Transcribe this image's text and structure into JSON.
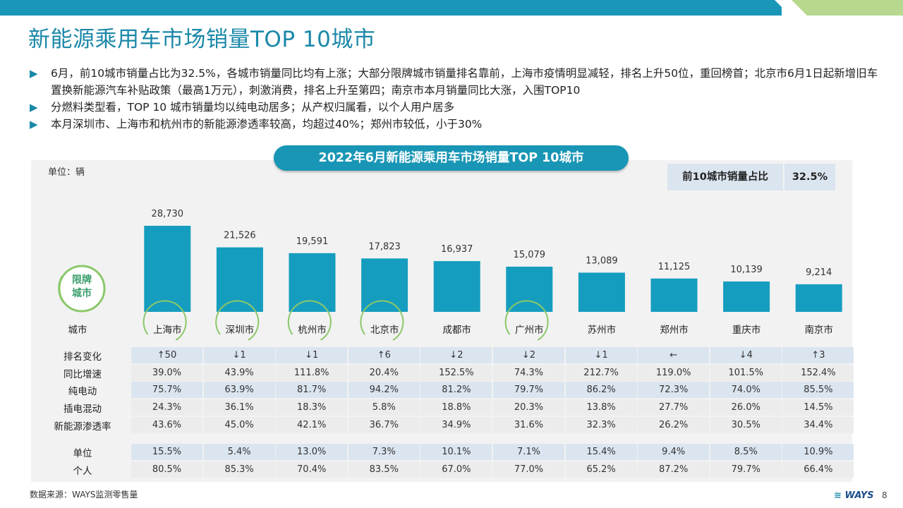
{
  "title": "新能源乘用车市场销量TOP 10城市",
  "bullets": [
    "6月，前10城市销量占比为32.5%，各城市销量同比均有上涨；大部分限牌城市销量排名靠前，上海市疫情明显减轻，排名上升50位，重回榜首；北京市6月1日起新增旧车置换新能源汽车补贴政策（最高1万元），刺激消费，排名上升至第四；南京市本月销量同比大涨，入围TOP10",
    "分燃料类型看，TOP 10 城市销量均以纯电动居多；从产权归属看，以个人用户居多",
    "本月深圳市、上海市和杭州市的新能源渗透率较高，均超过40%；郑州市较低，小于30%"
  ],
  "chart_title": "2022年6月新能源乘用车市场销量TOP 10城市",
  "unit_label": "单位：辆",
  "share": {
    "label": "前10城市销量占比",
    "value": "32.5%"
  },
  "badge": {
    "line1": "限牌",
    "line2": "城市"
  },
  "colors": {
    "bar": "#159dbf",
    "accent": "#1a88a8",
    "green_circle": "#8bc86a",
    "band": "#dbe5f0"
  },
  "chart_data": {
    "type": "bar",
    "x_label": "城市",
    "categories": [
      "上海市",
      "深圳市",
      "杭州市",
      "北京市",
      "成都市",
      "广州市",
      "苏州市",
      "郑州市",
      "重庆市",
      "南京市"
    ],
    "values": [
      28730,
      21526,
      19591,
      17823,
      16937,
      15079,
      13089,
      11125,
      10139,
      9214
    ],
    "value_labels": [
      "28,730",
      "21,526",
      "19,591",
      "17,823",
      "16,937",
      "15,079",
      "13,089",
      "11,125",
      "10,139",
      "9,214"
    ],
    "restricted_city": [
      true,
      true,
      true,
      true,
      false,
      true,
      false,
      false,
      false,
      false
    ],
    "ylim": [
      0,
      30000
    ]
  },
  "table": {
    "rows": [
      {
        "label": "排名变化",
        "values": [
          "↑50",
          "↓1",
          "↓1",
          "↑6",
          "↓2",
          "↓2",
          "↓1",
          "←",
          "↓4",
          "↑3"
        ]
      },
      {
        "label": "同比增速",
        "values": [
          "39.0%",
          "43.9%",
          "111.8%",
          "20.4%",
          "152.5%",
          "74.3%",
          "212.7%",
          "119.0%",
          "101.5%",
          "152.4%"
        ]
      },
      {
        "label": "纯电动",
        "values": [
          "75.7%",
          "63.9%",
          "81.7%",
          "94.2%",
          "81.2%",
          "79.7%",
          "86.2%",
          "72.3%",
          "74.0%",
          "85.5%"
        ]
      },
      {
        "label": "插电混动",
        "values": [
          "24.3%",
          "36.1%",
          "18.3%",
          "5.8%",
          "18.8%",
          "20.3%",
          "13.8%",
          "27.7%",
          "26.0%",
          "14.5%"
        ]
      },
      {
        "label": "新能源渗透率",
        "values": [
          "43.6%",
          "45.0%",
          "42.1%",
          "36.7%",
          "34.9%",
          "31.6%",
          "32.3%",
          "26.2%",
          "30.5%",
          "34.4%"
        ]
      },
      {
        "label": "单位",
        "values": [
          "15.5%",
          "5.4%",
          "13.0%",
          "7.3%",
          "10.1%",
          "7.1%",
          "15.4%",
          "9.4%",
          "8.5%",
          "10.9%"
        ]
      },
      {
        "label": "个人",
        "values": [
          "80.5%",
          "85.3%",
          "70.4%",
          "83.5%",
          "67.0%",
          "77.0%",
          "65.2%",
          "87.2%",
          "79.7%",
          "66.4%"
        ]
      }
    ]
  },
  "source": "数据来源：WAYS监测零售量",
  "logo": "WAYS",
  "page_number": "8"
}
